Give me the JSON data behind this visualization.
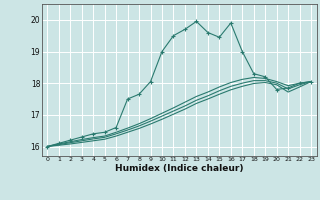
{
  "xlabel": "Humidex (Indice chaleur)",
  "ylabel": "",
  "xlim": [
    -0.5,
    23.5
  ],
  "ylim": [
    15.7,
    20.5
  ],
  "xticks": [
    0,
    1,
    2,
    3,
    4,
    5,
    6,
    7,
    8,
    9,
    10,
    11,
    12,
    13,
    14,
    15,
    16,
    17,
    18,
    19,
    20,
    21,
    22,
    23
  ],
  "yticks": [
    16,
    17,
    18,
    19,
    20
  ],
  "background_color": "#cce5e5",
  "grid_color": "#ffffff",
  "line_color": "#2a7a6f",
  "lines": [
    {
      "x": [
        0,
        1,
        2,
        3,
        4,
        5,
        6,
        7,
        8,
        9,
        10,
        11,
        12,
        13,
        14,
        15,
        16,
        17,
        18,
        19,
        20,
        21,
        22,
        23
      ],
      "y": [
        16.0,
        16.1,
        16.2,
        16.3,
        16.4,
        16.45,
        16.6,
        17.5,
        17.65,
        18.05,
        19.0,
        19.5,
        19.7,
        19.95,
        19.6,
        19.45,
        19.9,
        19.0,
        18.3,
        18.2,
        17.8,
        17.85,
        18.0,
        18.05
      ],
      "marker": true
    },
    {
      "x": [
        0,
        1,
        2,
        3,
        4,
        5,
        6,
        7,
        8,
        9,
        10,
        11,
        12,
        13,
        14,
        15,
        16,
        17,
        18,
        19,
        20,
        21,
        22,
        23
      ],
      "y": [
        16.0,
        16.08,
        16.15,
        16.22,
        16.28,
        16.33,
        16.45,
        16.58,
        16.72,
        16.88,
        17.05,
        17.22,
        17.4,
        17.58,
        17.72,
        17.88,
        18.02,
        18.12,
        18.18,
        18.15,
        18.05,
        17.92,
        18.0,
        18.05
      ],
      "marker": false
    },
    {
      "x": [
        0,
        1,
        2,
        3,
        4,
        5,
        6,
        7,
        8,
        9,
        10,
        11,
        12,
        13,
        14,
        15,
        16,
        17,
        18,
        19,
        20,
        21,
        22,
        23
      ],
      "y": [
        16.0,
        16.06,
        16.12,
        16.18,
        16.24,
        16.29,
        16.4,
        16.52,
        16.65,
        16.8,
        16.96,
        17.12,
        17.28,
        17.46,
        17.6,
        17.76,
        17.9,
        18.0,
        18.08,
        18.08,
        18.0,
        17.82,
        17.95,
        18.05
      ],
      "marker": false
    },
    {
      "x": [
        0,
        1,
        2,
        3,
        4,
        5,
        6,
        7,
        8,
        9,
        10,
        11,
        12,
        13,
        14,
        15,
        16,
        17,
        18,
        19,
        20,
        21,
        22,
        23
      ],
      "y": [
        16.0,
        16.04,
        16.08,
        16.13,
        16.18,
        16.23,
        16.33,
        16.45,
        16.57,
        16.71,
        16.86,
        17.02,
        17.18,
        17.36,
        17.5,
        17.65,
        17.79,
        17.9,
        17.99,
        18.02,
        17.95,
        17.72,
        17.88,
        18.05
      ],
      "marker": false
    }
  ]
}
